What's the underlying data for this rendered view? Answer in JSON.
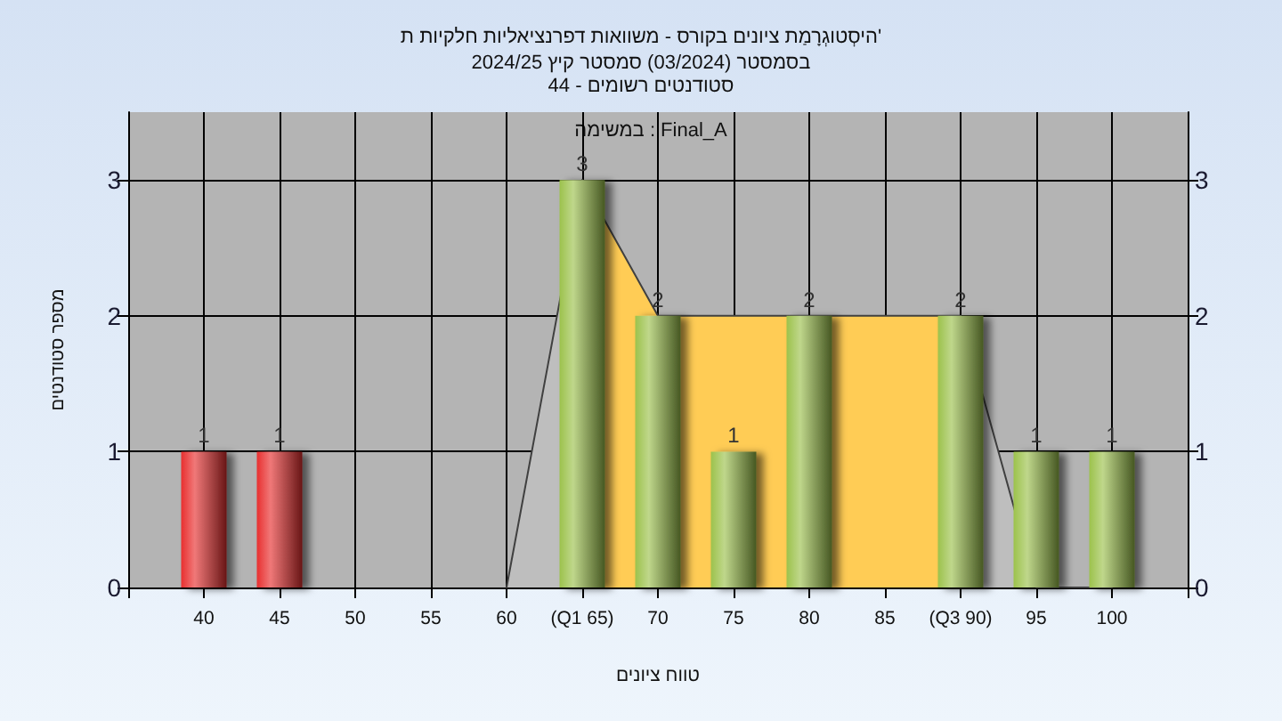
{
  "chart_data": {
    "type": "bar",
    "title": "היסְטוגְרָמַת ציונים בקורס - משוואות דפרנציאליות חלקיות ת'",
    "subtitle": "בסמסטר (03/2024) סמסטר קיץ 2024/25\nסטודנטים רשומים - 44",
    "xlabel": "טווח ציונים",
    "ylabel": "מספר סטודנטים",
    "annotations": [
      "במשימה : Final_A"
    ],
    "xlim": [
      35,
      105
    ],
    "xticks": [
      {
        "value": 35,
        "label": null
      },
      40,
      45,
      50,
      55,
      60,
      {
        "value": 65,
        "label": "(Q1 65)"
      },
      70,
      75,
      80,
      85,
      {
        "value": 90,
        "label": "(Q3 90)"
      },
      95,
      100,
      {
        "value": 105,
        "label": null
      }
    ],
    "ylim": [
      0,
      3.5
    ],
    "yticks": [
      0,
      1,
      2,
      3
    ],
    "y2lim": [
      0,
      3.5
    ],
    "y2ticks": [
      0,
      1,
      2,
      3
    ],
    "grid": true,
    "series": [
      {
        "type": "area",
        "color": "#bebebe",
        "x": [
          60,
          65
        ],
        "values": [
          0,
          3
        ]
      },
      {
        "type": "area",
        "color": "#ffcc55",
        "x": [
          65,
          70,
          75,
          80,
          85,
          90
        ],
        "values": [
          3,
          2,
          2,
          2,
          2,
          2
        ]
      },
      {
        "type": "area",
        "color": "#bebebe",
        "x": [
          90,
          95,
          100
        ],
        "values": [
          2,
          0,
          0
        ]
      },
      {
        "x": [
          40,
          45,
          65,
          70,
          75,
          80,
          90,
          95,
          100
        ],
        "values": [
          1,
          1,
          3,
          2,
          1,
          2,
          2,
          1,
          1
        ],
        "colors": [
          "#e83030",
          "#e83030",
          "#9cc24c",
          "#9cc24c",
          "#9cc24c",
          "#9cc24c",
          "#9cc24c",
          "#9cc24c",
          "#9cc24c"
        ],
        "value_labels": [
          "1",
          "1",
          "3",
          "2",
          "1",
          "2",
          "2",
          "1",
          "1"
        ]
      }
    ]
  }
}
